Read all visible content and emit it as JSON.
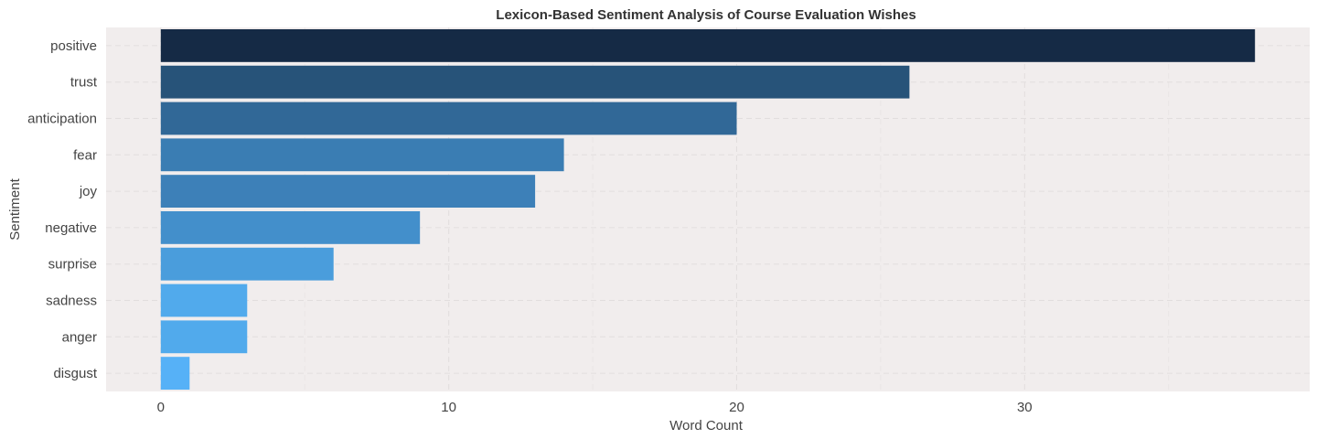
{
  "chart_data": {
    "type": "bar",
    "orientation": "horizontal",
    "title": "Lexicon-Based Sentiment Analysis of Course Evaluation Wishes",
    "xlabel": "Word Count",
    "ylabel": "Sentiment",
    "categories": [
      "positive",
      "trust",
      "anticipation",
      "fear",
      "joy",
      "negative",
      "surprise",
      "sadness",
      "anger",
      "disgust"
    ],
    "values": [
      38,
      26,
      20,
      14,
      13,
      9,
      6,
      3,
      3,
      1
    ],
    "colors": [
      "#152a45",
      "#275379",
      "#316897",
      "#3a7db3",
      "#3d80b8",
      "#438fcb",
      "#4a9ddc",
      "#51aaec",
      "#51aaec",
      "#56b1f7"
    ],
    "xlim": [
      -1.9,
      39.9
    ],
    "xticks": [
      0,
      10,
      20,
      30
    ],
    "grid": true,
    "legend": "none",
    "panel_background": "#f1eded"
  }
}
